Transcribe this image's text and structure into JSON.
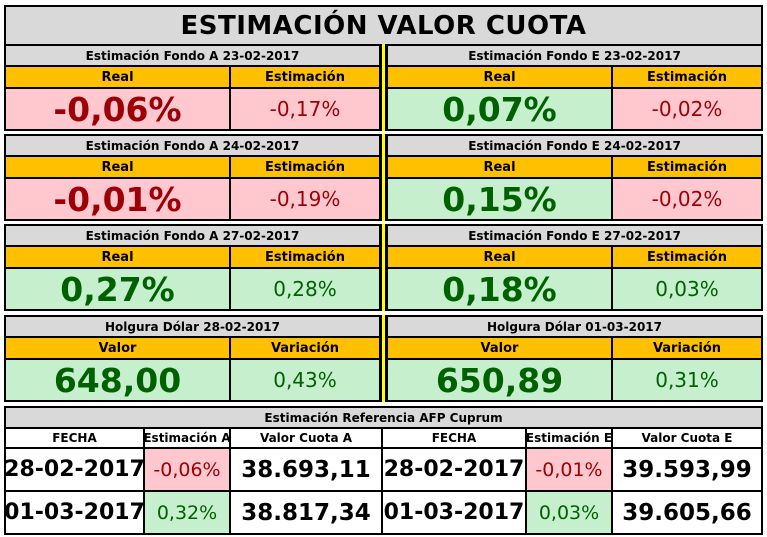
{
  "title": "ESTIMACIÓN VALOR CUOTA",
  "blocks": [
    {
      "left": {
        "header": "Estimación Fondo A  23-02-2017",
        "col1": "Real",
        "col2": "Estimación",
        "val1": "-0,06%",
        "val2": "-0,17%",
        "tone1": "neg",
        "tone2": "neg"
      },
      "right": {
        "header": "Estimación Fondo E  23-02-2017",
        "col1": "Real",
        "col2": "Estimación",
        "val1": "0,07%",
        "val2": "-0,02%",
        "tone1": "pos",
        "tone2": "neg"
      }
    },
    {
      "left": {
        "header": "Estimación Fondo A  24-02-2017",
        "col1": "Real",
        "col2": "Estimación",
        "val1": "-0,01%",
        "val2": "-0,19%",
        "tone1": "neg",
        "tone2": "neg"
      },
      "right": {
        "header": "Estimación Fondo E  24-02-2017",
        "col1": "Real",
        "col2": "Estimación",
        "val1": "0,15%",
        "val2": "-0,02%",
        "tone1": "pos",
        "tone2": "neg"
      }
    },
    {
      "left": {
        "header": "Estimación Fondo A  27-02-2017",
        "col1": "Real",
        "col2": "Estimación",
        "val1": "0,27%",
        "val2": "0,28%",
        "tone1": "pos",
        "tone2": "pos"
      },
      "right": {
        "header": "Estimación Fondo E  27-02-2017",
        "col1": "Real",
        "col2": "Estimación",
        "val1": "0,18%",
        "val2": "0,03%",
        "tone1": "pos",
        "tone2": "pos"
      }
    },
    {
      "left": {
        "header": "Holgura Dólar  28-02-2017",
        "col1": "Valor",
        "col2": "Variación",
        "val1": "648,00",
        "val2": "0,43%",
        "tone1": "pos",
        "tone2": "pos"
      },
      "right": {
        "header": "Holgura Dólar  01-03-2017",
        "col1": "Valor",
        "col2": "Variación",
        "val1": "650,89",
        "val2": "0,31%",
        "tone1": "pos",
        "tone2": "pos"
      }
    }
  ],
  "reference": {
    "header": "Estimación Referencia AFP Cuprum",
    "columns": [
      "FECHA",
      "Estimación A",
      "Valor Cuota A",
      "FECHA",
      "Estimación E",
      "Valor Cuota E"
    ],
    "rows": [
      {
        "fecha_a": "28-02-2017",
        "est_a": "-0,06%",
        "cuota_a": "38.693,11",
        "tone_a": "neg",
        "fecha_e": "28-02-2017",
        "est_e": "-0,01%",
        "cuota_e": "39.593,99",
        "tone_e": "neg"
      },
      {
        "fecha_a": "01-03-2017",
        "est_a": "0,32%",
        "cuota_a": "38.817,34",
        "tone_a": "pos",
        "fecha_e": "01-03-2017",
        "est_e": "0,03%",
        "cuota_e": "39.605,66",
        "tone_e": "pos"
      }
    ]
  },
  "colors": {
    "header_gray": "#d9d9d9",
    "column_orange": "#ffc000",
    "negative_fill": "#ffc7ce",
    "negative_text": "#9c0006",
    "positive_fill": "#c6efce",
    "positive_text": "#006100",
    "separator_yellow": "#ffff00"
  }
}
